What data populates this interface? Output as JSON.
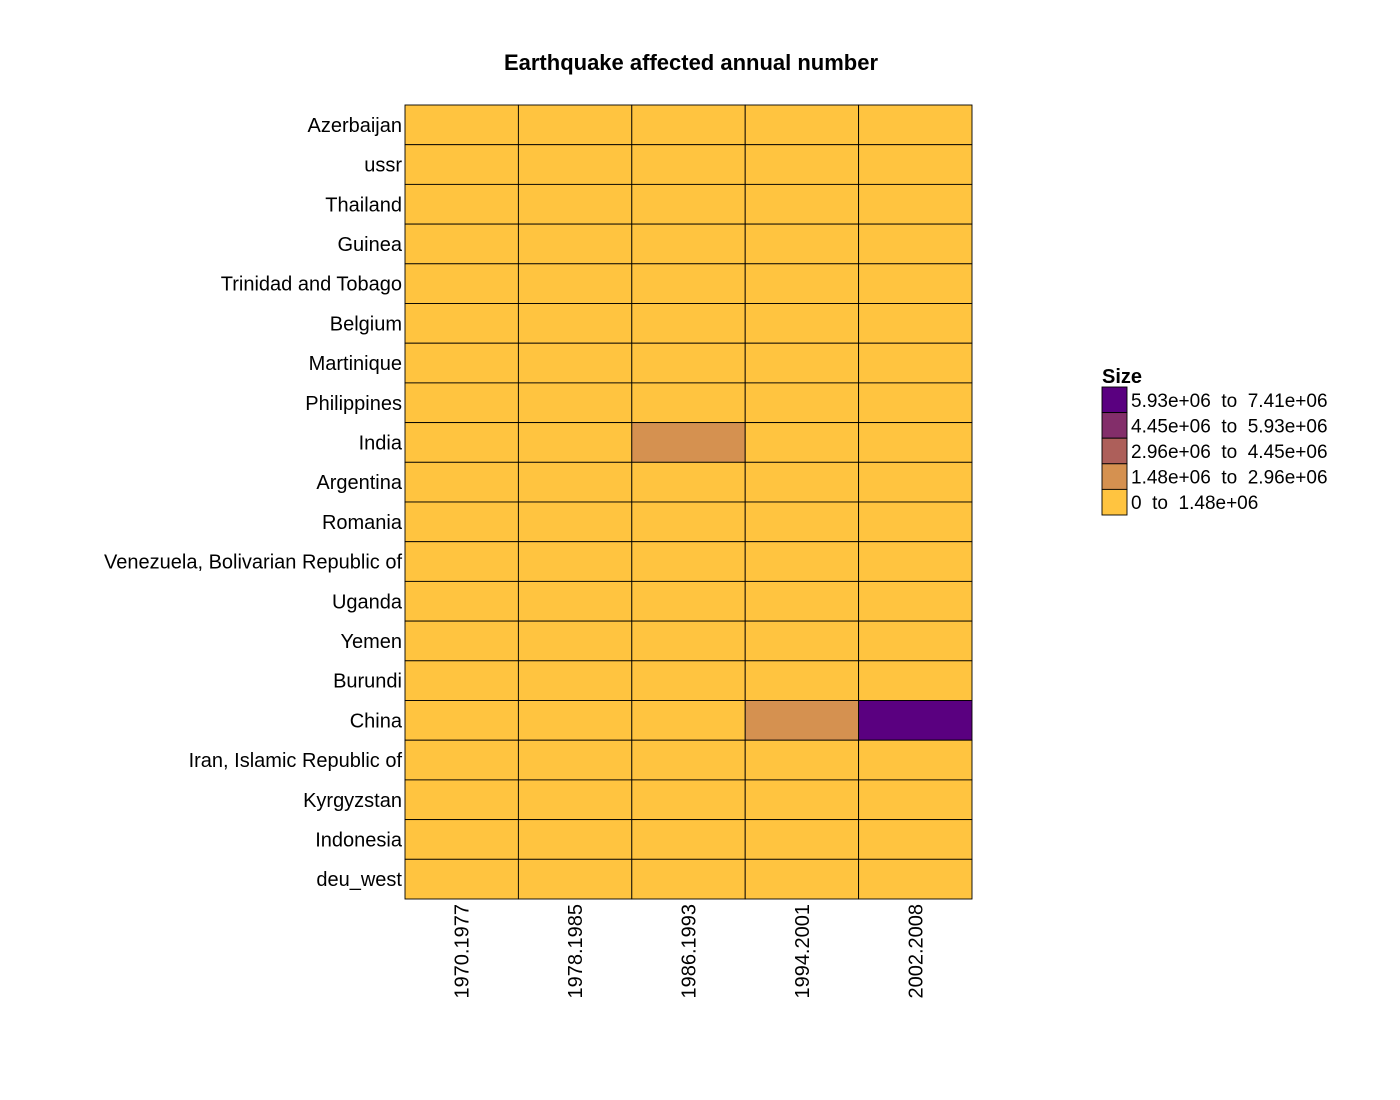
{
  "chart_data": {
    "type": "heatmap",
    "title": "Earthquake affected annual number",
    "xlabel": "",
    "ylabel": "",
    "columns": [
      "1970.1977",
      "1978.1985",
      "1986.1993",
      "1994.2001",
      "2002.2008"
    ],
    "rows": [
      "Azerbaijan",
      "ussr",
      "Thailand",
      "Guinea",
      "Trinidad and Tobago",
      "Belgium",
      "Martinique",
      "Philippines",
      "India",
      "Argentina",
      "Romania",
      "Venezuela, Bolivarian Republic of",
      "Uganda",
      "Yemen",
      "Burundi",
      "China",
      "Iran, Islamic Republic of",
      "Kyrgyzstan",
      "Indonesia",
      "deu_west"
    ],
    "bins": [
      [
        0,
        0,
        0,
        0,
        0
      ],
      [
        0,
        0,
        0,
        0,
        0
      ],
      [
        0,
        0,
        0,
        0,
        0
      ],
      [
        0,
        0,
        0,
        0,
        0
      ],
      [
        0,
        0,
        0,
        0,
        0
      ],
      [
        0,
        0,
        0,
        0,
        0
      ],
      [
        0,
        0,
        0,
        0,
        0
      ],
      [
        0,
        0,
        0,
        0,
        0
      ],
      [
        0,
        0,
        1,
        0,
        0
      ],
      [
        0,
        0,
        0,
        0,
        0
      ],
      [
        0,
        0,
        0,
        0,
        0
      ],
      [
        0,
        0,
        0,
        0,
        0
      ],
      [
        0,
        0,
        0,
        0,
        0
      ],
      [
        0,
        0,
        0,
        0,
        0
      ],
      [
        0,
        0,
        0,
        0,
        0
      ],
      [
        0,
        0,
        0,
        1,
        4
      ],
      [
        0,
        0,
        0,
        0,
        0
      ],
      [
        0,
        0,
        0,
        0,
        0
      ],
      [
        0,
        0,
        0,
        0,
        0
      ],
      [
        0,
        0,
        0,
        0,
        0
      ]
    ],
    "legend": {
      "title": "Size",
      "placement": "right",
      "items": [
        {
          "label": "5.93e+06  to  7.41e+06",
          "color": "#5a0080",
          "bin": 4
        },
        {
          "label": "4.45e+06  to  5.93e+06",
          "color": "#832e6a",
          "bin": 3
        },
        {
          "label": "2.96e+06  to  4.45e+06",
          "color": "#ad5f5a",
          "bin": 2
        },
        {
          "label": "1.48e+06  to  2.96e+06",
          "color": "#d59150",
          "bin": 1
        },
        {
          "label": "0  to  1.48e+06",
          "color": "#ffc440",
          "bin": 0
        }
      ]
    },
    "grid": true
  }
}
